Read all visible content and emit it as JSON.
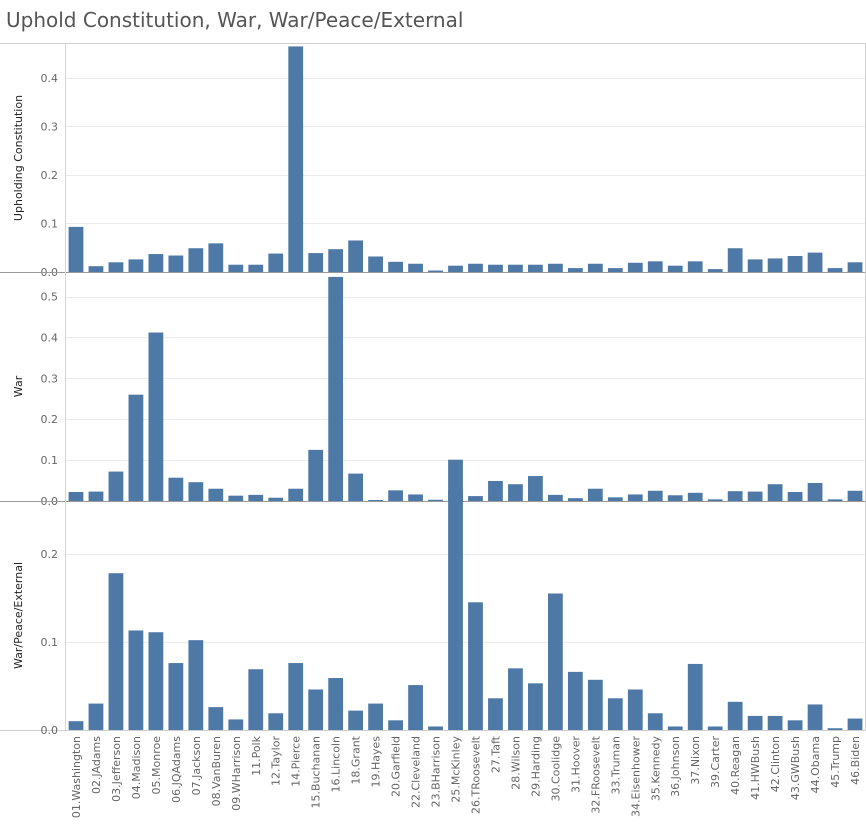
{
  "title": "Uphold Constitution, War, War/Peace/External",
  "chart_data": {
    "type": "bar",
    "bar_color": "#4e79a7",
    "categories": [
      "01.Washington",
      "02.JAdams",
      "03.Jefferson",
      "04.Madison",
      "05.Monroe",
      "06.JQAdams",
      "07.Jackson",
      "08.VanBuren",
      "09.WHarrison",
      "11.Polk",
      "12.Taylor",
      "14.Pierce",
      "15.Buchanan",
      "16.Lincoln",
      "18.Grant",
      "19.Hayes",
      "20.Garfield",
      "22.Cleveland",
      "23.BHarrison",
      "25.McKinley",
      "26.TRoosevelt",
      "27.Taft",
      "28.Wilson",
      "29.Harding",
      "30.Coolidge",
      "31.Hoover",
      "32.FRoosevelt",
      "33.Truman",
      "34.Eisenhower",
      "35.Kennedy",
      "36.Johnson",
      "37.Nixon",
      "39.Carter",
      "40.Reagan",
      "41.HWBush",
      "42.Clinton",
      "43.GWBush",
      "44.Obama",
      "45.Trump",
      "46.Biden"
    ],
    "panels": [
      {
        "ylabel": "Upholding Constitution",
        "ylim": [
          0,
          0.47
        ],
        "ticks": [
          0.0,
          0.1,
          0.2,
          0.3,
          0.4
        ],
        "tick_labels": [
          "0.0",
          "0.1",
          "0.2",
          "0.3",
          "0.4"
        ],
        "values": [
          0.093,
          0.012,
          0.02,
          0.026,
          0.037,
          0.034,
          0.049,
          0.059,
          0.015,
          0.015,
          0.038,
          0.465,
          0.039,
          0.047,
          0.065,
          0.032,
          0.021,
          0.017,
          0.003,
          0.013,
          0.017,
          0.015,
          0.015,
          0.015,
          0.017,
          0.008,
          0.017,
          0.008,
          0.019,
          0.022,
          0.013,
          0.022,
          0.006,
          0.049,
          0.026,
          0.028,
          0.033,
          0.04,
          0.008,
          0.02
        ]
      },
      {
        "ylabel": "War",
        "ylim": [
          0,
          0.56
        ],
        "ticks": [
          0.0,
          0.1,
          0.2,
          0.3,
          0.4,
          0.5
        ],
        "tick_labels": [
          "0.0",
          "0.1",
          "0.2",
          "0.3",
          "0.4",
          "0.5"
        ],
        "values": [
          0.022,
          0.023,
          0.072,
          0.26,
          0.412,
          0.057,
          0.046,
          0.03,
          0.013,
          0.015,
          0.008,
          0.03,
          0.125,
          0.548,
          0.067,
          0.002,
          0.026,
          0.016,
          0.003,
          0.101,
          0.012,
          0.049,
          0.041,
          0.061,
          0.015,
          0.007,
          0.03,
          0.009,
          0.016,
          0.025,
          0.014,
          0.02,
          0.004,
          0.024,
          0.023,
          0.041,
          0.022,
          0.044,
          0.004,
          0.025
        ]
      },
      {
        "ylabel": "War/Peace/External",
        "ylim": [
          0,
          0.26
        ],
        "ticks": [
          0.0,
          0.1,
          0.2
        ],
        "tick_labels": [
          "0.0",
          "0.1",
          "0.2"
        ],
        "values": [
          0.01,
          0.03,
          0.178,
          0.113,
          0.111,
          0.076,
          0.102,
          0.026,
          0.012,
          0.069,
          0.019,
          0.076,
          0.046,
          0.059,
          0.022,
          0.03,
          0.011,
          0.051,
          0.004,
          0.272,
          0.145,
          0.036,
          0.07,
          0.053,
          0.155,
          0.066,
          0.057,
          0.036,
          0.046,
          0.019,
          0.004,
          0.075,
          0.004,
          0.032,
          0.016,
          0.016,
          0.011,
          0.029,
          0.002,
          0.013
        ]
      }
    ],
    "grid": true
  }
}
